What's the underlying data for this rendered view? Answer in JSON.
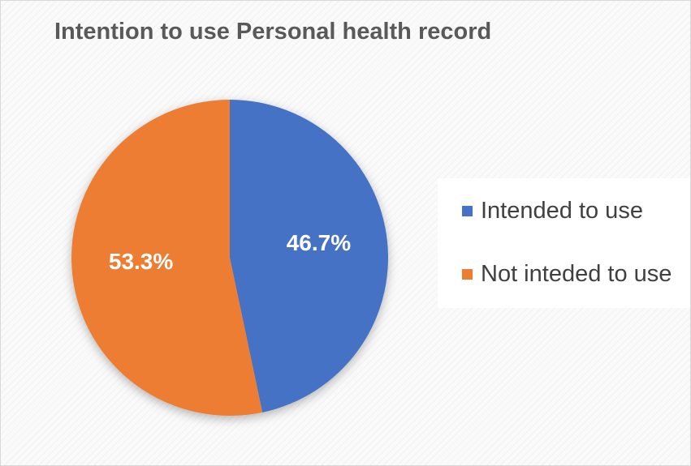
{
  "chart_data": {
    "type": "pie",
    "title": "Intention to use Personal health record",
    "slices": [
      {
        "label": "Intended to use",
        "value": 46.7,
        "display": "46.7%",
        "color": "#4472C4"
      },
      {
        "label": "Not inteded to use",
        "value": 53.3,
        "display": "53.3%",
        "color": "#ED7D31"
      }
    ],
    "start_angle_deg": 0,
    "direction": "clockwise",
    "legend_position": "right"
  }
}
